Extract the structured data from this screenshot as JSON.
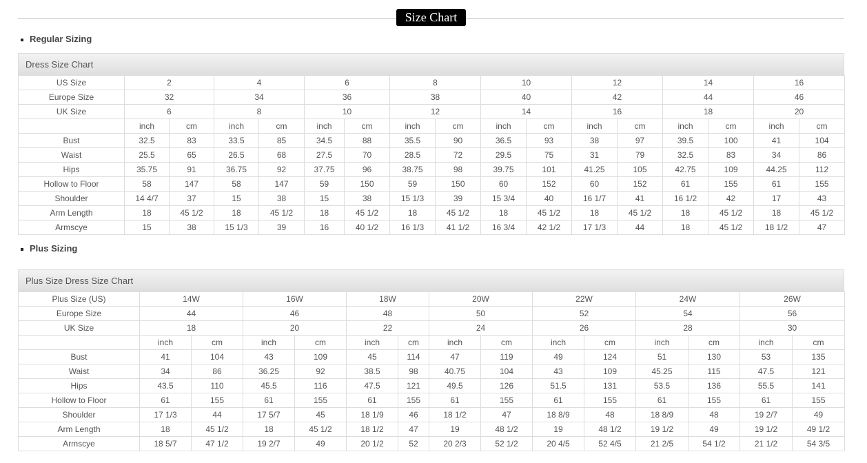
{
  "title": "Size Chart",
  "regular": {
    "heading": "Regular Sizing",
    "caption": "Dress Size Chart",
    "header_rows": [
      {
        "label": "US Size",
        "values": [
          "2",
          "4",
          "6",
          "8",
          "10",
          "12",
          "14",
          "16"
        ]
      },
      {
        "label": "Europe Size",
        "values": [
          "32",
          "34",
          "36",
          "38",
          "40",
          "42",
          "44",
          "46"
        ]
      },
      {
        "label": "UK Size",
        "values": [
          "6",
          "8",
          "10",
          "12",
          "14",
          "16",
          "18",
          "20"
        ]
      }
    ],
    "units": [
      "inch",
      "cm"
    ],
    "rows": [
      {
        "label": "Bust",
        "values": [
          "32.5",
          "83",
          "33.5",
          "85",
          "34.5",
          "88",
          "35.5",
          "90",
          "36.5",
          "93",
          "38",
          "97",
          "39.5",
          "100",
          "41",
          "104"
        ]
      },
      {
        "label": "Waist",
        "values": [
          "25.5",
          "65",
          "26.5",
          "68",
          "27.5",
          "70",
          "28.5",
          "72",
          "29.5",
          "75",
          "31",
          "79",
          "32.5",
          "83",
          "34",
          "86"
        ]
      },
      {
        "label": "Hips",
        "values": [
          "35.75",
          "91",
          "36.75",
          "92",
          "37.75",
          "96",
          "38.75",
          "98",
          "39.75",
          "101",
          "41.25",
          "105",
          "42.75",
          "109",
          "44.25",
          "112"
        ]
      },
      {
        "label": "Hollow to Floor",
        "values": [
          "58",
          "147",
          "58",
          "147",
          "59",
          "150",
          "59",
          "150",
          "60",
          "152",
          "60",
          "152",
          "61",
          "155",
          "61",
          "155"
        ]
      },
      {
        "label": "Shoulder",
        "values": [
          "14 4/7",
          "37",
          "15",
          "38",
          "15",
          "38",
          "15 1/3",
          "39",
          "15 3/4",
          "40",
          "16 1/7",
          "41",
          "16 1/2",
          "42",
          "17",
          "43"
        ]
      },
      {
        "label": "Arm Length",
        "values": [
          "18",
          "45 1/2",
          "18",
          "45 1/2",
          "18",
          "45 1/2",
          "18",
          "45 1/2",
          "18",
          "45 1/2",
          "18",
          "45 1/2",
          "18",
          "45 1/2",
          "18",
          "45 1/2"
        ]
      },
      {
        "label": "Armscye",
        "values": [
          "15",
          "38",
          "15 1/3",
          "39",
          "16",
          "40 1/2",
          "16 1/3",
          "41 1/2",
          "16 3/4",
          "42 1/2",
          "17 1/3",
          "44",
          "18",
          "45 1/2",
          "18 1/2",
          "47"
        ]
      }
    ]
  },
  "plus": {
    "heading": "Plus Sizing",
    "caption": "Plus Size Dress Size Chart",
    "header_rows": [
      {
        "label": "Plus Size (US)",
        "values": [
          "14W",
          "16W",
          "18W",
          "20W",
          "22W",
          "24W",
          "26W"
        ]
      },
      {
        "label": "Europe Size",
        "values": [
          "44",
          "46",
          "48",
          "50",
          "52",
          "54",
          "56"
        ]
      },
      {
        "label": "UK Size",
        "values": [
          "18",
          "20",
          "22",
          "24",
          "26",
          "28",
          "30"
        ]
      }
    ],
    "units": [
      "inch",
      "cm"
    ],
    "rows": [
      {
        "label": "Bust",
        "values": [
          "41",
          "104",
          "43",
          "109",
          "45",
          "114",
          "47",
          "119",
          "49",
          "124",
          "51",
          "130",
          "53",
          "135"
        ]
      },
      {
        "label": "Waist",
        "values": [
          "34",
          "86",
          "36.25",
          "92",
          "38.5",
          "98",
          "40.75",
          "104",
          "43",
          "109",
          "45.25",
          "115",
          "47.5",
          "121"
        ]
      },
      {
        "label": "Hips",
        "values": [
          "43.5",
          "110",
          "45.5",
          "116",
          "47.5",
          "121",
          "49.5",
          "126",
          "51.5",
          "131",
          "53.5",
          "136",
          "55.5",
          "141"
        ]
      },
      {
        "label": "Hollow to Floor",
        "values": [
          "61",
          "155",
          "61",
          "155",
          "61",
          "155",
          "61",
          "155",
          "61",
          "155",
          "61",
          "155",
          "61",
          "155"
        ]
      },
      {
        "label": "Shoulder",
        "values": [
          "17 1/3",
          "44",
          "17 5/7",
          "45",
          "18 1/9",
          "46",
          "18 1/2",
          "47",
          "18 8/9",
          "48",
          "18 8/9",
          "48",
          "19 2/7",
          "49"
        ]
      },
      {
        "label": "Arm Length",
        "values": [
          "18",
          "45 1/2",
          "18",
          "45 1/2",
          "18 1/2",
          "47",
          "19",
          "48 1/2",
          "19",
          "48 1/2",
          "19 1/2",
          "49",
          "19 1/2",
          "49 1/2"
        ]
      },
      {
        "label": "Armscye",
        "values": [
          "18 5/7",
          "47 1/2",
          "19 2/7",
          "49",
          "20 1/2",
          "52",
          "20 2/3",
          "52 1/2",
          "20 4/5",
          "52 4/5",
          "21 2/5",
          "54 1/2",
          "21 1/2",
          "54 3/5"
        ]
      }
    ]
  }
}
